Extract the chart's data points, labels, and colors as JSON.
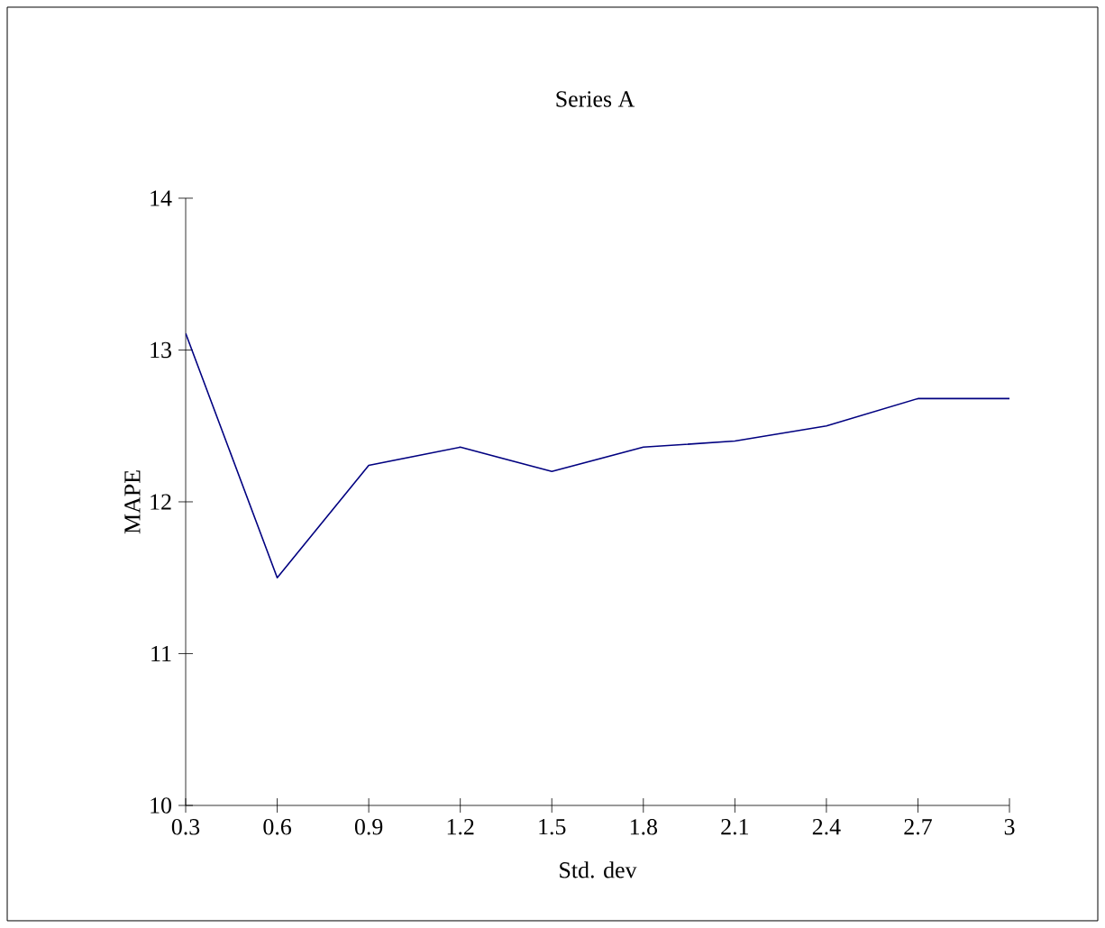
{
  "chart_data": {
    "type": "line",
    "title": "Series A",
    "xlabel": "Std. dev",
    "ylabel": "MAPE",
    "x": [
      0.3,
      0.6,
      0.9,
      1.2,
      1.5,
      1.8,
      2.1,
      2.4,
      2.7,
      3
    ],
    "series": [
      {
        "color": "#000080",
        "values": [
          13.11,
          11.5,
          12.24,
          12.36,
          12.2,
          12.36,
          12.4,
          12.5,
          12.68,
          12.68
        ]
      }
    ],
    "xlim": [
      0.3,
      3
    ],
    "xticks": [
      0.3,
      0.6,
      0.9,
      1.2,
      1.5,
      1.8,
      2.1,
      2.4,
      2.7,
      3
    ],
    "ylim": [
      10,
      14
    ],
    "yticks": [
      10,
      11,
      12,
      13,
      14
    ],
    "marker": "none",
    "line_style": "solid"
  }
}
